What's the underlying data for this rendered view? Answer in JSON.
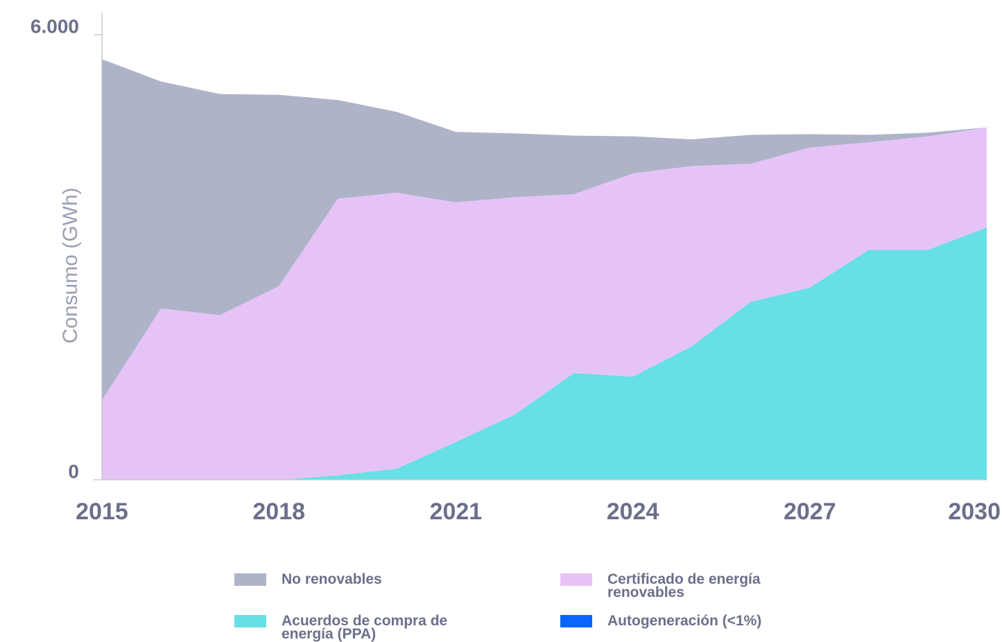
{
  "chart_data": {
    "type": "stacked_area",
    "y_label": "Consumo (GWh)",
    "x": [
      2015,
      2016,
      2017,
      2018,
      2019,
      2020,
      2021,
      2022,
      2023,
      2024,
      2025,
      2026,
      2027,
      2028,
      2029,
      2030
    ],
    "xlim": [
      2015,
      2030
    ],
    "xticks": [
      2015,
      2018,
      2021,
      2024,
      2027,
      2030
    ],
    "ylim": [
      0,
      6300
    ],
    "yticks": [
      0,
      {
        "value": 6000,
        "label": "6.000"
      }
    ],
    "series": [
      {
        "name": "No renovables",
        "color": "#aeb3c8",
        "values": [
          4600,
          3060,
          2980,
          2580,
          1330,
          1090,
          950,
          860,
          790,
          500,
          360,
          390,
          180,
          100,
          50,
          0
        ]
      },
      {
        "name": "Certificado de energía renovables",
        "color": "#e6c3f7",
        "values": [
          1070,
          2310,
          2220,
          2610,
          3730,
          3720,
          3230,
          2930,
          2410,
          2740,
          2430,
          1860,
          1890,
          1450,
          1530,
          1350
        ]
      },
      {
        "name": "Acuerdos de compra de energía (PPA)",
        "color": "#66e0e4",
        "values": [
          0,
          0,
          0,
          0,
          60,
          150,
          510,
          880,
          1440,
          1390,
          1800,
          2400,
          2590,
          3100,
          3100,
          3400
        ]
      },
      {
        "name": "Autogeneración (<1%)",
        "color": "#0a64ff",
        "values": [
          0,
          0,
          0,
          0,
          0,
          0,
          0,
          0,
          0,
          0,
          0,
          0,
          0,
          0,
          0,
          0
        ]
      }
    ]
  }
}
